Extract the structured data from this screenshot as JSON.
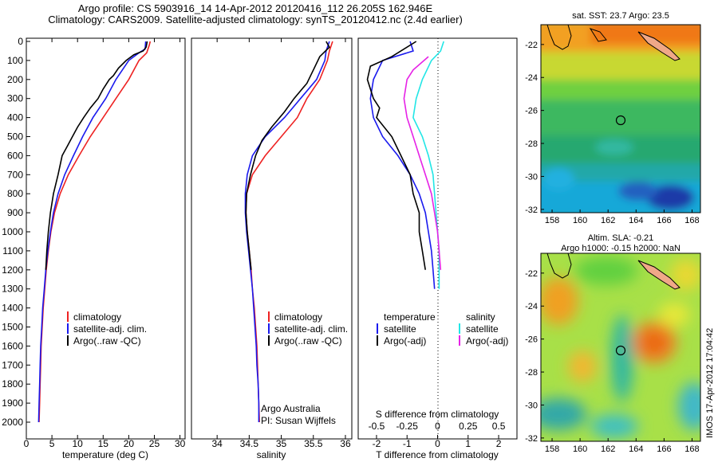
{
  "header": {
    "title_line1": "Argo profile: CS 5903916_14 14-Apr-2012 20120416_112 26.205S 162.946E",
    "title_line2": "Climatology: CARS2009. Satellite-adjusted climatology: synTS_20120412.nc (2.4d earlier)"
  },
  "colors": {
    "climatology": "#ee2222",
    "satellite": "#1a1aee",
    "argo": "#000000",
    "satellite_salinity": "#22e6e6",
    "argo_salinity": "#e622e6"
  },
  "chart_data": [
    {
      "id": "temperature",
      "type": "line",
      "xlabel": "temperature (deg C)",
      "xlim": [
        0,
        31
      ],
      "xticks": [
        0,
        5,
        10,
        15,
        20,
        25,
        30
      ],
      "ylim": [
        0,
        2050
      ],
      "yticks": [
        0,
        100,
        200,
        300,
        400,
        500,
        600,
        700,
        800,
        900,
        1000,
        1100,
        1200,
        1300,
        1400,
        1500,
        1600,
        1700,
        1800,
        1900,
        2000
      ],
      "legend": [
        "climatology",
        "satellite-adj. clim.",
        "Argo(..raw -QC)"
      ],
      "series": [
        {
          "name": "climatology",
          "color": "#ee2222",
          "points": [
            [
              24.2,
              0
            ],
            [
              24.0,
              20
            ],
            [
              23.5,
              60
            ],
            [
              22.0,
              100
            ],
            [
              20.0,
              200
            ],
            [
              17.5,
              300
            ],
            [
              15.0,
              400
            ],
            [
              12.5,
              500
            ],
            [
              10.3,
              600
            ],
            [
              8.2,
              700
            ],
            [
              6.6,
              800
            ],
            [
              5.5,
              900
            ],
            [
              4.8,
              1000
            ],
            [
              4.3,
              1100
            ],
            [
              3.9,
              1200
            ],
            [
              3.6,
              1300
            ],
            [
              3.3,
              1400
            ],
            [
              3.1,
              1500
            ],
            [
              2.9,
              1600
            ],
            [
              2.8,
              1700
            ],
            [
              2.7,
              1800
            ],
            [
              2.6,
              1900
            ],
            [
              2.5,
              2000
            ]
          ]
        },
        {
          "name": "satellite-adj. clim.",
          "color": "#1a1aee",
          "points": [
            [
              23.3,
              0
            ],
            [
              23.2,
              40
            ],
            [
              22.0,
              60
            ],
            [
              20.0,
              100
            ],
            [
              17.5,
              200
            ],
            [
              15.5,
              300
            ],
            [
              13.0,
              400
            ],
            [
              11.0,
              500
            ],
            [
              9.2,
              600
            ],
            [
              7.5,
              700
            ],
            [
              6.2,
              800
            ],
            [
              5.3,
              900
            ],
            [
              4.7,
              1000
            ],
            [
              4.2,
              1100
            ],
            [
              3.8,
              1200
            ],
            [
              3.5,
              1300
            ],
            [
              3.2,
              1400
            ],
            [
              3.0,
              1500
            ],
            [
              2.8,
              1600
            ],
            [
              2.7,
              1700
            ],
            [
              2.6,
              1800
            ],
            [
              2.5,
              1900
            ],
            [
              2.4,
              2000
            ]
          ]
        },
        {
          "name": "Argo(..raw -QC)",
          "color": "#000000",
          "points": [
            [
              23.6,
              0
            ],
            [
              23.4,
              30
            ],
            [
              22.8,
              50
            ],
            [
              21.0,
              70
            ],
            [
              19.5,
              100
            ],
            [
              18.0,
              140
            ],
            [
              17.0,
              180
            ],
            [
              16.2,
              200
            ],
            [
              15.0,
              250
            ],
            [
              14.0,
              300
            ],
            [
              12.5,
              350
            ],
            [
              11.2,
              400
            ],
            [
              10.0,
              450
            ],
            [
              9.0,
              500
            ],
            [
              8.0,
              550
            ],
            [
              7.0,
              600
            ],
            [
              6.2,
              700
            ],
            [
              5.3,
              800
            ],
            [
              4.7,
              900
            ],
            [
              4.3,
              1000
            ],
            [
              4.0,
              1100
            ],
            [
              3.8,
              1200
            ]
          ]
        }
      ]
    },
    {
      "id": "salinity",
      "type": "line",
      "xlabel": "salinity",
      "xlim": [
        33.6,
        36.1
      ],
      "xticks": [
        34,
        34.5,
        35,
        35.5,
        36
      ],
      "ylim": [
        0,
        2050
      ],
      "legend": [
        "climatology",
        "satellite-adj. clim.",
        "Argo(..raw -QC)"
      ],
      "annotation": [
        "Argo Australia",
        "PI: Susan Wijffels"
      ],
      "series": [
        {
          "name": "climatology",
          "color": "#ee2222",
          "points": [
            [
              35.8,
              0
            ],
            [
              35.75,
              50
            ],
            [
              35.72,
              100
            ],
            [
              35.6,
              200
            ],
            [
              35.4,
              300
            ],
            [
              35.25,
              400
            ],
            [
              35.0,
              500
            ],
            [
              34.75,
              600
            ],
            [
              34.55,
              700
            ],
            [
              34.46,
              800
            ],
            [
              34.45,
              900
            ],
            [
              34.47,
              1000
            ],
            [
              34.5,
              1100
            ],
            [
              34.53,
              1200
            ],
            [
              34.55,
              1300
            ],
            [
              34.58,
              1400
            ],
            [
              34.6,
              1500
            ],
            [
              34.62,
              1600
            ],
            [
              34.63,
              1700
            ],
            [
              34.64,
              1800
            ],
            [
              34.65,
              1900
            ],
            [
              34.66,
              2000
            ]
          ]
        },
        {
          "name": "satellite-adj. clim.",
          "color": "#1a1aee",
          "points": [
            [
              35.75,
              0
            ],
            [
              35.7,
              50
            ],
            [
              35.68,
              100
            ],
            [
              35.55,
              200
            ],
            [
              35.3,
              300
            ],
            [
              35.05,
              400
            ],
            [
              34.75,
              500
            ],
            [
              34.55,
              600
            ],
            [
              34.47,
              700
            ],
            [
              34.44,
              800
            ],
            [
              34.44,
              900
            ],
            [
              34.46,
              1000
            ],
            [
              34.49,
              1100
            ],
            [
              34.52,
              1200
            ],
            [
              34.55,
              1300
            ],
            [
              34.57,
              1400
            ],
            [
              34.59,
              1500
            ],
            [
              34.61,
              1600
            ],
            [
              34.62,
              1700
            ],
            [
              34.64,
              1800
            ],
            [
              34.65,
              1900
            ],
            [
              34.65,
              2000
            ]
          ]
        },
        {
          "name": "Argo(..raw -QC)",
          "color": "#000000",
          "points": [
            [
              35.7,
              0
            ],
            [
              35.75,
              30
            ],
            [
              35.6,
              80
            ],
            [
              35.5,
              150
            ],
            [
              35.4,
              220
            ],
            [
              35.2,
              300
            ],
            [
              35.05,
              370
            ],
            [
              34.85,
              450
            ],
            [
              34.7,
              520
            ],
            [
              34.6,
              600
            ],
            [
              34.52,
              700
            ],
            [
              34.46,
              800
            ],
            [
              34.45,
              900
            ],
            [
              34.47,
              1000
            ],
            [
              34.5,
              1100
            ],
            [
              34.53,
              1200
            ]
          ]
        }
      ]
    },
    {
      "id": "difference",
      "type": "line",
      "xlabel": "T difference from climatology",
      "xlabel_top": "S difference from climatology",
      "xlim": [
        -2.6,
        2.6
      ],
      "xticks_bottom": [
        -2,
        -1,
        0,
        1,
        2
      ],
      "xticks_top_labels": [
        "-0.5",
        "-0.25",
        "0",
        "0.25",
        "0.5"
      ],
      "ylim": [
        0,
        2050
      ],
      "legend_left_title": "temperature",
      "legend_right_title": "salinity",
      "legend_left": [
        "satellite",
        "Argo(-adj)"
      ],
      "legend_right": [
        "satellite",
        "Argo(-adj)"
      ],
      "series": [
        {
          "name": "temperature satellite",
          "color": "#1a1aee",
          "points": [
            [
              -0.9,
              0
            ],
            [
              -0.8,
              50
            ],
            [
              -1.8,
              100
            ],
            [
              -2.1,
              200
            ],
            [
              -2.2,
              300
            ],
            [
              -2.1,
              400
            ],
            [
              -1.8,
              500
            ],
            [
              -1.3,
              600
            ],
            [
              -0.9,
              700
            ],
            [
              -0.6,
              800
            ],
            [
              -0.4,
              900
            ],
            [
              -0.3,
              1000
            ],
            [
              -0.2,
              1100
            ],
            [
              -0.15,
              1200
            ],
            [
              -0.1,
              1300
            ]
          ]
        },
        {
          "name": "temperature Argo(-adj)",
          "color": "#000000",
          "points": [
            [
              -0.7,
              0
            ],
            [
              -1.5,
              80
            ],
            [
              -2.2,
              130
            ],
            [
              -2.3,
              200
            ],
            [
              -2.1,
              300
            ],
            [
              -1.9,
              350
            ],
            [
              -2.0,
              400
            ],
            [
              -1.5,
              500
            ],
            [
              -1.2,
              600
            ],
            [
              -0.9,
              700
            ],
            [
              -0.8,
              800
            ],
            [
              -0.6,
              900
            ],
            [
              -0.6,
              1000
            ],
            [
              -0.5,
              1100
            ],
            [
              -0.4,
              1200
            ]
          ]
        },
        {
          "name": "salinity satellite",
          "color": "#22e6e6",
          "points": [
            [
              0.2,
              0
            ],
            [
              0.1,
              50
            ],
            [
              -0.2,
              100
            ],
            [
              -0.5,
              200
            ],
            [
              -0.7,
              300
            ],
            [
              -0.8,
              400
            ],
            [
              -0.5,
              500
            ],
            [
              -0.3,
              600
            ],
            [
              -0.15,
              700
            ],
            [
              -0.1,
              800
            ],
            [
              -0.05,
              900
            ],
            [
              0,
              1000
            ],
            [
              0.05,
              1100
            ],
            [
              0.05,
              1200
            ],
            [
              0.05,
              1300
            ]
          ]
        },
        {
          "name": "salinity Argo(-adj)",
          "color": "#e622e6",
          "points": [
            [
              -0.3,
              80
            ],
            [
              -0.8,
              150
            ],
            [
              -1.0,
              200
            ],
            [
              -1.1,
              300
            ],
            [
              -1.0,
              400
            ],
            [
              -0.8,
              500
            ],
            [
              -0.6,
              600
            ],
            [
              -0.4,
              700
            ],
            [
              -0.2,
              800
            ],
            [
              -0.1,
              900
            ],
            [
              0.0,
              1000
            ],
            [
              0.05,
              1100
            ],
            [
              0.1,
              1200
            ]
          ]
        }
      ]
    },
    {
      "id": "map_sst",
      "type": "heatmap",
      "title": "sat. SST: 23.7 Argo: 23.5",
      "xticks": [
        158,
        160,
        162,
        164,
        166,
        168
      ],
      "yticks": [
        -22,
        -24,
        -26,
        -28,
        -30,
        -32
      ],
      "marker": [
        162.946,
        -26.205
      ]
    },
    {
      "id": "map_sla",
      "type": "heatmap",
      "title_line1": "Altim. SLA: -0.21",
      "title_line2": "Argo h1000: -0.15 h2000: NaN",
      "xticks": [
        158,
        160,
        162,
        164,
        166,
        168
      ],
      "yticks": [
        -22,
        -24,
        -26,
        -28,
        -30,
        -32
      ],
      "marker": [
        162.946,
        -26.205
      ]
    }
  ],
  "side_label": "IMOS 17-Apr-2012 17:04:42"
}
